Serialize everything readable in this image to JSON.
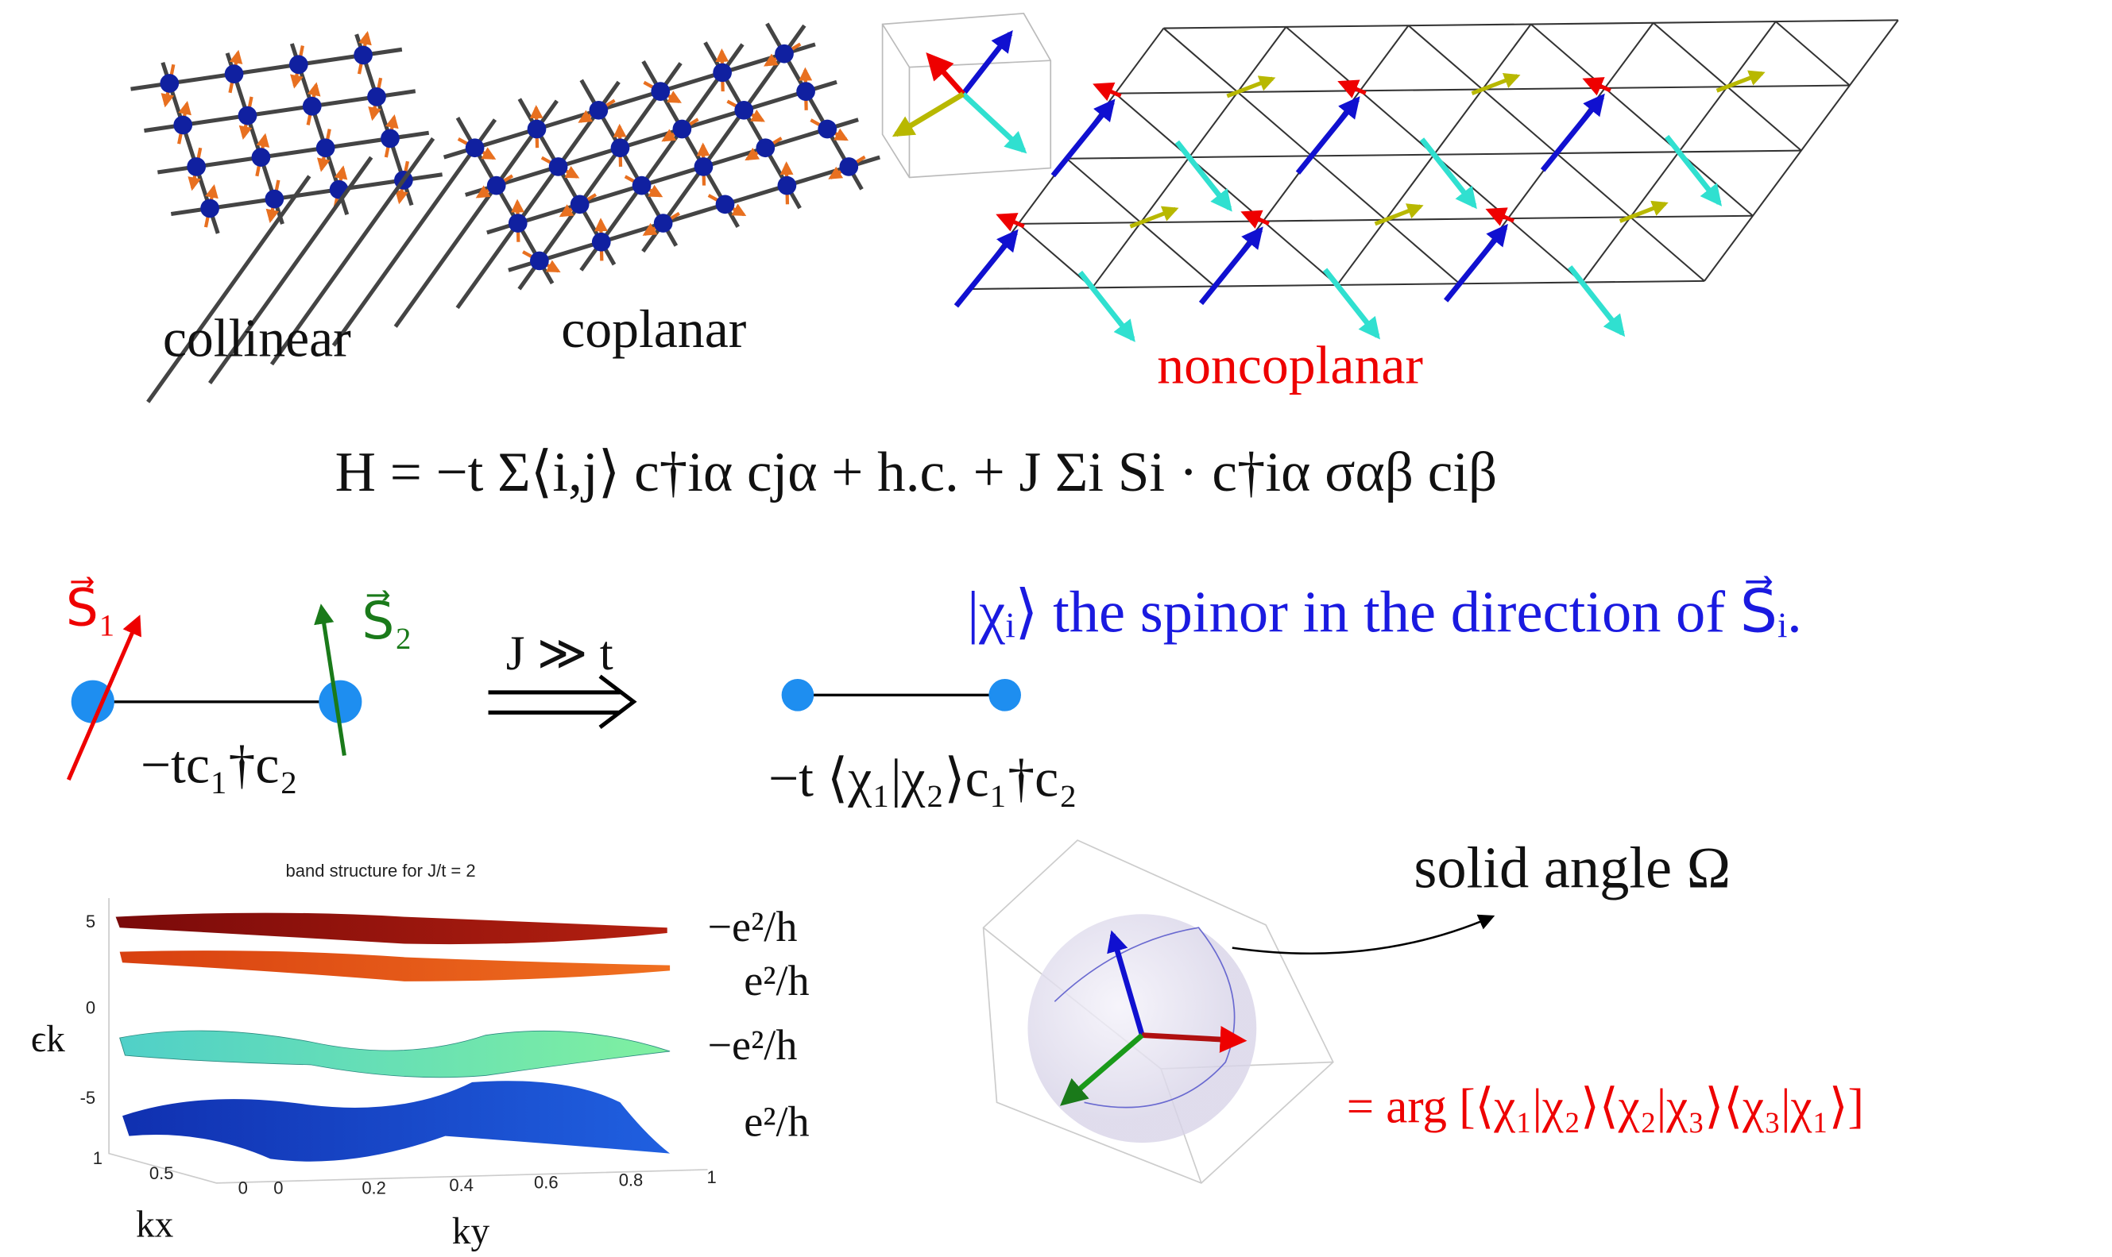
{
  "panels": {
    "collinear": "collinear",
    "coplanar": "coplanar",
    "noncoplanar": "noncoplanar"
  },
  "hamiltonian": "H = −t Σ⟨i,j⟩ c†iα cjα + h.c. + J Σi Si · c†iα σαβ ciβ",
  "bond": {
    "s1": "S⃗₁",
    "s2": "S⃗₂",
    "hopping": "−tc₁†c₂",
    "arrow_label": "J ≫ t",
    "effective_hopping": "−t ⟨χ₁|χ₂⟩c₁†c₂"
  },
  "spinor_note": "|χᵢ⟩ the spinor in the direction of S⃗ᵢ.",
  "band_plot": {
    "title": "band structure for J/t = 2",
    "energy_label": "ϵk",
    "energy_ticks": [
      "5",
      "0",
      "-5"
    ],
    "kx_ticks": [
      "1",
      "0.5",
      "0"
    ],
    "ky_ticks": [
      "0",
      "0.2",
      "0.4",
      "0.6",
      "0.8",
      "1"
    ],
    "kx_label": "kx",
    "ky_label": "ky",
    "hall": [
      "−e²/h",
      "e²/h",
      "−e²/h",
      "e²/h"
    ]
  },
  "solid_angle": {
    "label": "solid angle Ω",
    "formula": "= arg [⟨χ₁|χ₂⟩⟨χ₂|χ₃⟩⟨χ₃|χ₁⟩]"
  }
}
